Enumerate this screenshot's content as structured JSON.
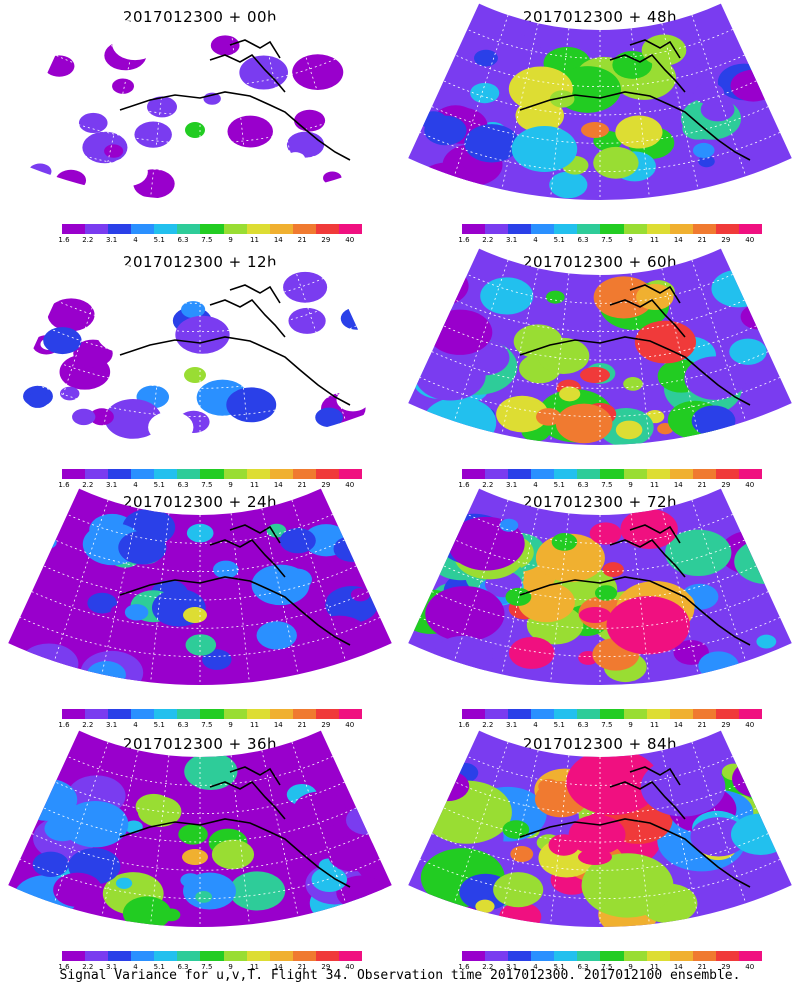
{
  "caption": "Signal Variance for u,v,T. Flight 34. Observation time 2017012300. 2017012100 ensemble.",
  "legend": {
    "colors": [
      "#9900cc",
      "#7a3cf0",
      "#2a40e8",
      "#2a90ff",
      "#22c0ee",
      "#2ecc99",
      "#22cc22",
      "#99dd33",
      "#dddd33",
      "#f0b030",
      "#f07a30",
      "#f03a3a",
      "#f01080"
    ],
    "labels": [
      "1.6",
      "2.2",
      "3.1",
      "4",
      "5.1",
      "6.3",
      "7.5",
      "9",
      "11",
      "14",
      "21",
      "29",
      "40"
    ]
  },
  "panels": [
    {
      "title": "2017012300 + 00h",
      "level": 0
    },
    {
      "title": "2017012300 + 48h",
      "level": 4
    },
    {
      "title": "2017012300 + 12h",
      "level": 1
    },
    {
      "title": "2017012300 + 60h",
      "level": 5
    },
    {
      "title": "2017012300 + 24h",
      "level": 2
    },
    {
      "title": "2017012300 + 72h",
      "level": 6
    },
    {
      "title": "2017012300 + 36h",
      "level": 3
    },
    {
      "title": "2017012300 + 84h",
      "level": 7
    }
  ]
}
